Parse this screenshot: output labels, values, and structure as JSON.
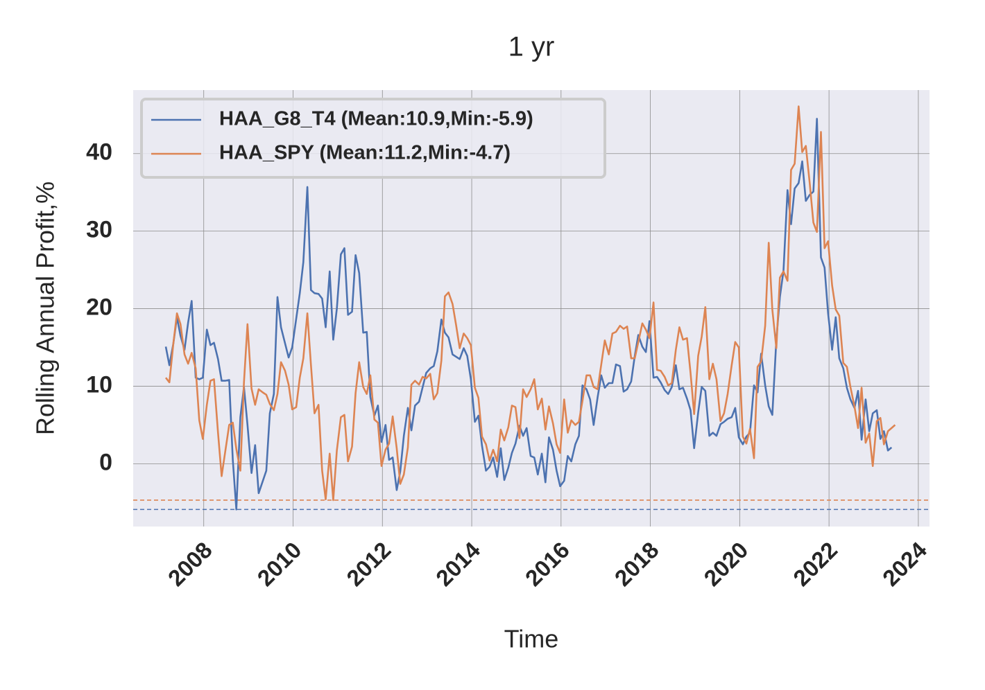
{
  "chart_data": {
    "type": "line",
    "title": "1 yr",
    "x_label": "Time",
    "y_label": "Rolling Annual Profit,%",
    "xlim": [
      2006.42,
      2024.25
    ],
    "ylim": [
      -8.1,
      48.2
    ],
    "xticks": [
      2008,
      2010,
      2012,
      2014,
      2016,
      2018,
      2020,
      2022,
      2024
    ],
    "yticks": [
      0,
      10,
      20,
      30,
      40
    ],
    "grid": true,
    "legend": "upper left",
    "series": [
      {
        "name": "HAA_G8_T4 (Mean:10.9,Min:-5.9)",
        "color": "#4c72b0",
        "x": [
          2007.15,
          2007.23,
          2007.32,
          2007.4,
          2007.48,
          2007.57,
          2007.65,
          2007.73,
          2007.82,
          2007.9,
          2007.98,
          2008.07,
          2008.15,
          2008.23,
          2008.32,
          2008.4,
          2008.48,
          2008.57,
          2008.65,
          2008.73,
          2008.82,
          2008.9,
          2008.98,
          2009.07,
          2009.15,
          2009.23,
          2009.4,
          2009.48,
          2009.57,
          2009.65,
          2009.73,
          2009.9,
          2009.98,
          2010.15,
          2010.23,
          2010.32,
          2010.4,
          2010.48,
          2010.57,
          2010.65,
          2010.73,
          2010.82,
          2010.9,
          2010.98,
          2011.07,
          2011.15,
          2011.23,
          2011.32,
          2011.4,
          2011.48,
          2011.57,
          2011.65,
          2011.73,
          2011.82,
          2011.9,
          2011.98,
          2012.07,
          2012.15,
          2012.23,
          2012.32,
          2012.4,
          2012.48,
          2012.57,
          2012.65,
          2012.73,
          2012.82,
          2012.98,
          2013.07,
          2013.15,
          2013.23,
          2013.32,
          2013.4,
          2013.48,
          2013.57,
          2013.73,
          2013.82,
          2013.9,
          2013.98,
          2014.07,
          2014.15,
          2014.23,
          2014.32,
          2014.4,
          2014.48,
          2014.57,
          2014.65,
          2014.73,
          2014.82,
          2014.9,
          2014.98,
          2015.07,
          2015.15,
          2015.23,
          2015.32,
          2015.4,
          2015.48,
          2015.57,
          2015.65,
          2015.73,
          2015.82,
          2015.9,
          2015.98,
          2016.07,
          2016.15,
          2016.23,
          2016.32,
          2016.4,
          2016.48,
          2016.57,
          2016.65,
          2016.73,
          2016.82,
          2016.9,
          2016.98,
          2017.07,
          2017.15,
          2017.23,
          2017.32,
          2017.4,
          2017.48,
          2017.57,
          2017.65,
          2017.73,
          2017.82,
          2017.9,
          2017.98,
          2018.07,
          2018.15,
          2018.23,
          2018.32,
          2018.4,
          2018.48,
          2018.57,
          2018.65,
          2018.73,
          2018.82,
          2018.9,
          2018.98,
          2019.07,
          2019.15,
          2019.23,
          2019.32,
          2019.4,
          2019.48,
          2019.57,
          2019.65,
          2019.73,
          2019.82,
          2019.9,
          2019.98,
          2020.07,
          2020.15,
          2020.23,
          2020.32,
          2020.4,
          2020.48,
          2020.57,
          2020.65,
          2020.73,
          2020.82,
          2020.9,
          2020.98,
          2021.07,
          2021.15,
          2021.23,
          2021.32,
          2021.4,
          2021.48,
          2021.57,
          2021.65,
          2021.73,
          2021.82,
          2021.9,
          2021.98,
          2022.07,
          2022.15,
          2022.23,
          2022.32,
          2022.4,
          2022.48,
          2022.57,
          2022.65,
          2022.73,
          2022.82,
          2022.9,
          2022.98,
          2023.07,
          2023.15,
          2023.23,
          2023.32,
          2023.4
        ],
        "values": [
          15.1,
          12.7,
          15.5,
          18.9,
          16.5,
          14.7,
          18.2,
          21.0,
          11.1,
          10.9,
          11.1,
          17.3,
          15.3,
          15.6,
          13.5,
          10.7,
          10.7,
          10.8,
          0.5,
          -5.9,
          6.0,
          9.9,
          5.0,
          -1.2,
          2.4,
          -3.8,
          -0.9,
          6.5,
          9.0,
          21.5,
          17.6,
          13.7,
          15.0,
          22.0,
          26.0,
          35.7,
          22.4,
          22.0,
          21.9,
          21.3,
          17.6,
          24.8,
          16.0,
          20.0,
          27.0,
          27.8,
          19.2,
          19.6,
          26.9,
          24.6,
          16.9,
          17.0,
          8.6,
          6.2,
          7.5,
          2.8,
          5.0,
          0.5,
          0.8,
          -3.4,
          -1.0,
          3.6,
          7.2,
          4.3,
          7.5,
          8.0,
          11.7,
          12.3,
          12.6,
          14.5,
          18.6,
          16.9,
          16.3,
          14.1,
          13.5,
          14.9,
          13.9,
          10.9,
          5.4,
          6.2,
          2.3,
          -0.9,
          -0.4,
          0.8,
          -1.7,
          2.0,
          -2.1,
          -0.5,
          1.4,
          2.6,
          4.9,
          3.6,
          4.6,
          1.0,
          0.8,
          -1.4,
          1.3,
          -2.4,
          3.4,
          1.8,
          -0.9,
          -2.9,
          -2.2,
          1.0,
          0.3,
          2.5,
          3.6,
          10.1,
          9.6,
          8.3,
          5.0,
          8.6,
          11.4,
          9.8,
          10.4,
          10.4,
          12.8,
          12.6,
          9.3,
          9.6,
          10.6,
          13.9,
          16.6,
          15.1,
          14.4,
          18.4,
          11.1,
          11.2,
          10.5,
          9.5,
          9.0,
          9.9,
          12.7,
          9.6,
          9.8,
          8.4,
          6.9,
          2.0,
          6.6,
          9.9,
          9.4,
          3.6,
          4.0,
          3.6,
          5.1,
          5.4,
          5.8,
          6.0,
          7.2,
          3.4,
          2.5,
          3.5,
          4.0,
          10.1,
          9.2,
          14.2,
          10.1,
          7.4,
          6.3,
          16.0,
          21.5,
          24.9,
          35.3,
          30.9,
          35.5,
          36.2,
          39.0,
          33.9,
          34.7,
          35.1,
          44.5,
          26.6,
          25.3,
          19.4,
          14.7,
          18.9,
          13.6,
          12.3,
          9.8,
          8.3,
          7.2,
          9.4,
          3.1,
          8.3,
          4.2,
          6.5,
          6.9,
          3.2,
          4.2,
          1.7,
          2.1
        ]
      },
      {
        "name": "HAA_SPY (Mean:11.2,Min:-4.7)",
        "color": "#dd8452",
        "x": [
          2007.15,
          2007.23,
          2007.32,
          2007.4,
          2007.48,
          2007.57,
          2007.65,
          2007.73,
          2007.82,
          2007.9,
          2007.98,
          2008.07,
          2008.15,
          2008.23,
          2008.32,
          2008.4,
          2008.48,
          2008.57,
          2008.65,
          2008.73,
          2008.82,
          2008.9,
          2008.98,
          2009.07,
          2009.15,
          2009.23,
          2009.32,
          2009.4,
          2009.48,
          2009.57,
          2009.65,
          2009.73,
          2009.82,
          2009.9,
          2009.98,
          2010.07,
          2010.15,
          2010.23,
          2010.32,
          2010.4,
          2010.48,
          2010.57,
          2010.65,
          2010.73,
          2010.82,
          2010.9,
          2010.98,
          2011.07,
          2011.15,
          2011.23,
          2011.32,
          2011.4,
          2011.48,
          2011.57,
          2011.65,
          2011.73,
          2011.82,
          2011.9,
          2011.98,
          2012.07,
          2012.15,
          2012.23,
          2012.32,
          2012.4,
          2012.48,
          2012.57,
          2012.65,
          2012.73,
          2012.82,
          2012.9,
          2012.98,
          2013.07,
          2013.15,
          2013.23,
          2013.32,
          2013.4,
          2013.48,
          2013.57,
          2013.65,
          2013.73,
          2013.82,
          2013.9,
          2013.98,
          2014.07,
          2014.15,
          2014.23,
          2014.32,
          2014.4,
          2014.48,
          2014.57,
          2014.65,
          2014.73,
          2014.82,
          2014.9,
          2014.98,
          2015.07,
          2015.15,
          2015.23,
          2015.32,
          2015.4,
          2015.48,
          2015.57,
          2015.65,
          2015.73,
          2015.82,
          2015.9,
          2015.98,
          2016.07,
          2016.15,
          2016.23,
          2016.32,
          2016.4,
          2016.48,
          2016.57,
          2016.65,
          2016.73,
          2016.82,
          2016.9,
          2016.98,
          2017.07,
          2017.15,
          2017.23,
          2017.32,
          2017.4,
          2017.48,
          2017.57,
          2017.65,
          2017.73,
          2017.82,
          2017.9,
          2017.98,
          2018.07,
          2018.15,
          2018.23,
          2018.32,
          2018.4,
          2018.48,
          2018.57,
          2018.65,
          2018.73,
          2018.82,
          2018.9,
          2018.98,
          2019.07,
          2019.15,
          2019.23,
          2019.32,
          2019.4,
          2019.48,
          2019.57,
          2019.65,
          2019.73,
          2019.82,
          2019.9,
          2019.98,
          2020.07,
          2020.15,
          2020.23,
          2020.32,
          2020.4,
          2020.48,
          2020.57,
          2020.65,
          2020.73,
          2020.82,
          2020.9,
          2020.98,
          2021.07,
          2021.15,
          2021.23,
          2021.32,
          2021.4,
          2021.48,
          2021.57,
          2021.65,
          2021.73,
          2021.82,
          2021.9,
          2021.98,
          2022.07,
          2022.15,
          2022.23,
          2022.32,
          2022.4,
          2022.48,
          2022.57,
          2022.65,
          2022.73,
          2022.82,
          2022.9,
          2022.98,
          2023.07,
          2023.15,
          2023.23,
          2023.32,
          2023.4,
          2023.48
        ],
        "values": [
          11.1,
          10.5,
          15.5,
          19.4,
          18.0,
          14.1,
          12.9,
          14.3,
          12.3,
          5.6,
          3.2,
          7.6,
          10.7,
          10.9,
          4.0,
          -1.6,
          1.5,
          5.0,
          5.3,
          1.9,
          -0.9,
          10.5,
          18.0,
          9.7,
          7.6,
          9.6,
          9.2,
          8.9,
          7.7,
          6.9,
          9.0,
          13.1,
          12.0,
          10.2,
          7.0,
          7.3,
          11.1,
          13.6,
          19.4,
          12.7,
          6.5,
          7.6,
          -0.9,
          -4.6,
          1.3,
          -4.7,
          1.7,
          6.0,
          6.3,
          0.3,
          2.2,
          9.1,
          13.1,
          9.9,
          9.0,
          11.4,
          5.7,
          5.3,
          -0.3,
          1.8,
          2.6,
          6.1,
          2.0,
          -2.6,
          -1.4,
          2.1,
          10.2,
          10.7,
          10.2,
          11.2,
          11.0,
          11.6,
          8.3,
          9.1,
          13.3,
          21.6,
          22.1,
          20.6,
          17.9,
          14.9,
          16.8,
          16.2,
          15.3,
          9.8,
          8.5,
          3.5,
          2.5,
          0.4,
          1.8,
          0.3,
          4.4,
          3.0,
          4.7,
          7.5,
          7.3,
          3.3,
          9.6,
          8.6,
          9.6,
          10.9,
          7.0,
          8.4,
          4.4,
          7.4,
          5.2,
          2.5,
          1.4,
          8.3,
          4.0,
          5.6,
          5.0,
          5.4,
          8.1,
          11.4,
          11.4,
          9.9,
          9.6,
          12.8,
          15.9,
          14.1,
          16.8,
          17.0,
          17.8,
          17.4,
          17.7,
          13.6,
          13.6,
          15.7,
          18.1,
          17.3,
          16.2,
          20.8,
          12.1,
          12.0,
          11.2,
          10.1,
          10.4,
          14.7,
          17.6,
          16.0,
          16.2,
          11.7,
          6.4,
          13.9,
          16.4,
          20.2,
          10.9,
          12.9,
          10.9,
          5.5,
          6.5,
          9.0,
          12.7,
          15.7,
          15.0,
          3.5,
          2.6,
          4.5,
          0.7,
          12.5,
          13.2,
          17.8,
          28.5,
          19.9,
          14.9,
          24.0,
          24.8,
          23.6,
          37.9,
          38.7,
          46.1,
          40.2,
          41.0,
          36.1,
          31.1,
          29.9,
          42.8,
          27.8,
          28.7,
          23.0,
          19.9,
          19.1,
          13.0,
          12.5,
          9.9,
          7.4,
          4.6,
          9.8,
          2.7,
          3.9,
          -0.3,
          5.5,
          5.9,
          2.5,
          4.2,
          4.6,
          5.0
        ]
      }
    ],
    "hlines": [
      {
        "value": -4.7,
        "color": "#dd8452"
      },
      {
        "value": -5.9,
        "color": "#4c72b0"
      }
    ]
  }
}
